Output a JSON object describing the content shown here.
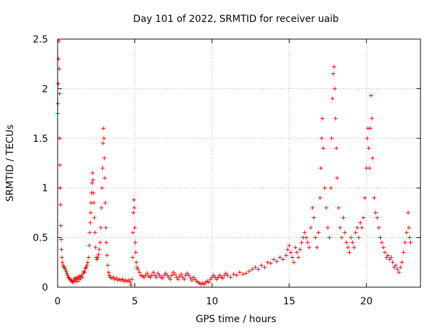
{
  "chart_data": {
    "type": "scatter",
    "title": "Day 101 of 2022, SRMTID for receiver uaib",
    "xlabel": "GPS time / hours",
    "ylabel": "SRMTID / TECUs",
    "xlim": [
      0,
      23.5
    ],
    "ylim": [
      0,
      2.5
    ],
    "xticks": [
      0,
      5,
      10,
      15,
      20
    ],
    "yticks": [
      0,
      0.5,
      1,
      1.5,
      2,
      2.5
    ],
    "xtick_labels": [
      "0",
      "5",
      "10",
      "15",
      "20"
    ],
    "ytick_labels": [
      "0",
      "0.5",
      "1",
      "1.5",
      "2",
      "2.5"
    ],
    "grid": true,
    "marker": "+",
    "color": "#ff0000",
    "series": [
      {
        "name": "SRMTID",
        "points": [
          [
            0.0,
            1.75
          ],
          [
            0.02,
            1.85
          ],
          [
            0.04,
            2.05
          ],
          [
            0.06,
            2.3
          ],
          [
            0.08,
            2.48
          ],
          [
            0.1,
            2.2
          ],
          [
            0.12,
            1.95
          ],
          [
            0.13,
            1.5
          ],
          [
            0.15,
            1.23
          ],
          [
            0.17,
            1.0
          ],
          [
            0.19,
            0.83
          ],
          [
            0.21,
            0.62
          ],
          [
            0.23,
            0.48
          ],
          [
            0.25,
            0.38
          ],
          [
            0.28,
            0.3
          ],
          [
            0.31,
            0.25
          ],
          [
            0.35,
            0.22
          ],
          [
            0.4,
            0.2
          ],
          [
            0.45,
            0.2
          ],
          [
            0.5,
            0.18
          ],
          [
            0.55,
            0.16
          ],
          [
            0.6,
            0.14
          ],
          [
            0.65,
            0.12
          ],
          [
            0.7,
            0.1
          ],
          [
            0.75,
            0.09
          ],
          [
            0.8,
            0.08
          ],
          [
            0.85,
            0.07
          ],
          [
            0.9,
            0.06
          ],
          [
            0.95,
            0.06
          ],
          [
            1.0,
            0.05
          ],
          [
            1.05,
            0.07
          ],
          [
            1.1,
            0.09
          ],
          [
            1.15,
            0.06
          ],
          [
            1.2,
            0.08
          ],
          [
            1.25,
            0.1
          ],
          [
            1.3,
            0.06
          ],
          [
            1.35,
            0.09
          ],
          [
            1.4,
            0.11
          ],
          [
            1.45,
            0.08
          ],
          [
            1.5,
            0.1
          ],
          [
            1.55,
            0.12
          ],
          [
            1.6,
            0.1
          ],
          [
            1.65,
            0.14
          ],
          [
            1.7,
            0.16
          ],
          [
            1.75,
            0.15
          ],
          [
            1.8,
            0.19
          ],
          [
            1.85,
            0.2
          ],
          [
            1.9,
            0.22
          ],
          [
            1.95,
            0.25
          ],
          [
            2.0,
            0.3
          ],
          [
            2.05,
            0.42
          ],
          [
            2.08,
            0.55
          ],
          [
            2.11,
            0.65
          ],
          [
            2.14,
            0.75
          ],
          [
            2.17,
            0.85
          ],
          [
            2.2,
            0.95
          ],
          [
            2.23,
            1.05
          ],
          [
            2.26,
            1.15
          ],
          [
            2.29,
            1.08
          ],
          [
            2.32,
            0.95
          ],
          [
            2.35,
            0.85
          ],
          [
            2.38,
            0.7
          ],
          [
            2.42,
            0.55
          ],
          [
            2.46,
            0.4
          ],
          [
            2.5,
            0.3
          ],
          [
            2.55,
            0.28
          ],
          [
            2.6,
            0.3
          ],
          [
            2.65,
            0.33
          ],
          [
            2.7,
            0.38
          ],
          [
            2.75,
            0.45
          ],
          [
            2.8,
            0.6
          ],
          [
            2.84,
            0.8
          ],
          [
            2.88,
            1.0
          ],
          [
            2.91,
            1.2
          ],
          [
            2.94,
            1.45
          ],
          [
            2.97,
            1.6
          ],
          [
            3.0,
            1.5
          ],
          [
            3.03,
            1.3
          ],
          [
            3.06,
            1.1
          ],
          [
            3.09,
            0.85
          ],
          [
            3.12,
            0.6
          ],
          [
            3.15,
            0.45
          ],
          [
            3.2,
            0.32
          ],
          [
            3.25,
            0.22
          ],
          [
            3.3,
            0.15
          ],
          [
            3.35,
            0.12
          ],
          [
            3.4,
            0.1
          ],
          [
            3.5,
            0.09
          ],
          [
            3.6,
            0.1
          ],
          [
            3.7,
            0.08
          ],
          [
            3.8,
            0.09
          ],
          [
            3.9,
            0.07
          ],
          [
            4.0,
            0.08
          ],
          [
            4.1,
            0.07
          ],
          [
            4.2,
            0.08
          ],
          [
            4.3,
            0.06
          ],
          [
            4.4,
            0.07
          ],
          [
            4.5,
            0.06
          ],
          [
            4.6,
            0.07
          ],
          [
            4.7,
            0.05
          ],
          [
            4.75,
            0.02
          ],
          [
            4.8,
            0.08
          ],
          [
            4.85,
            0.3
          ],
          [
            4.88,
            0.55
          ],
          [
            4.91,
            0.75
          ],
          [
            4.94,
            0.88
          ],
          [
            4.97,
            0.8
          ],
          [
            5.0,
            0.6
          ],
          [
            5.03,
            0.45
          ],
          [
            5.06,
            0.35
          ],
          [
            5.1,
            0.25
          ],
          [
            5.15,
            0.2
          ],
          [
            5.2,
            0.18
          ],
          [
            5.3,
            0.15
          ],
          [
            5.4,
            0.12
          ],
          [
            5.5,
            0.11
          ],
          [
            5.6,
            0.1
          ],
          [
            5.7,
            0.12
          ],
          [
            5.8,
            0.14
          ],
          [
            5.9,
            0.11
          ],
          [
            6.0,
            0.1
          ],
          [
            6.1,
            0.12
          ],
          [
            6.2,
            0.15
          ],
          [
            6.3,
            0.12
          ],
          [
            6.4,
            0.1
          ],
          [
            6.5,
            0.14
          ],
          [
            6.6,
            0.12
          ],
          [
            6.7,
            0.1
          ],
          [
            6.8,
            0.09
          ],
          [
            6.9,
            0.12
          ],
          [
            7.0,
            0.14
          ],
          [
            7.1,
            0.12
          ],
          [
            7.2,
            0.1
          ],
          [
            7.3,
            0.08
          ],
          [
            7.4,
            0.12
          ],
          [
            7.5,
            0.15
          ],
          [
            7.6,
            0.13
          ],
          [
            7.7,
            0.1
          ],
          [
            7.8,
            0.08
          ],
          [
            7.9,
            0.11
          ],
          [
            8.0,
            0.13
          ],
          [
            8.1,
            0.1
          ],
          [
            8.2,
            0.08
          ],
          [
            8.3,
            0.12
          ],
          [
            8.4,
            0.14
          ],
          [
            8.5,
            0.12
          ],
          [
            8.6,
            0.09
          ],
          [
            8.7,
            0.07
          ],
          [
            8.8,
            0.1
          ],
          [
            8.9,
            0.08
          ],
          [
            9.0,
            0.06
          ],
          [
            9.1,
            0.05
          ],
          [
            9.2,
            0.04
          ],
          [
            9.3,
            0.03
          ],
          [
            9.4,
            0.04
          ],
          [
            9.5,
            0.03
          ],
          [
            9.6,
            0.05
          ],
          [
            9.7,
            0.06
          ],
          [
            9.8,
            0.05
          ],
          [
            9.9,
            0.08
          ],
          [
            10.0,
            0.1
          ],
          [
            10.1,
            0.12
          ],
          [
            10.2,
            0.1
          ],
          [
            10.3,
            0.08
          ],
          [
            10.4,
            0.1
          ],
          [
            10.5,
            0.12
          ],
          [
            10.6,
            0.1
          ],
          [
            10.7,
            0.09
          ],
          [
            10.8,
            0.12
          ],
          [
            10.9,
            0.14
          ],
          [
            11.0,
            0.12
          ],
          [
            11.2,
            0.1
          ],
          [
            11.4,
            0.13
          ],
          [
            11.6,
            0.12
          ],
          [
            11.8,
            0.15
          ],
          [
            12.0,
            0.13
          ],
          [
            12.2,
            0.14
          ],
          [
            12.4,
            0.16
          ],
          [
            12.6,
            0.18
          ],
          [
            12.8,
            0.2
          ],
          [
            13.0,
            0.18
          ],
          [
            13.2,
            0.22
          ],
          [
            13.4,
            0.2
          ],
          [
            13.6,
            0.25
          ],
          [
            13.8,
            0.24
          ],
          [
            14.0,
            0.28
          ],
          [
            14.2,
            0.26
          ],
          [
            14.4,
            0.3
          ],
          [
            14.6,
            0.28
          ],
          [
            14.8,
            0.32
          ],
          [
            14.9,
            0.38
          ],
          [
            15.0,
            0.42
          ],
          [
            15.1,
            0.35
          ],
          [
            15.2,
            0.3
          ],
          [
            15.3,
            0.25
          ],
          [
            15.4,
            0.4
          ],
          [
            15.5,
            0.35
          ],
          [
            15.6,
            0.3
          ],
          [
            15.7,
            0.38
          ],
          [
            15.8,
            0.45
          ],
          [
            15.9,
            0.5
          ],
          [
            16.0,
            0.55
          ],
          [
            16.1,
            0.5
          ],
          [
            16.2,
            0.45
          ],
          [
            16.3,
            0.4
          ],
          [
            16.4,
            0.6
          ],
          [
            16.5,
            0.8
          ],
          [
            16.6,
            0.7
          ],
          [
            16.7,
            0.5
          ],
          [
            16.8,
            0.4
          ],
          [
            16.9,
            0.55
          ],
          [
            17.0,
            0.9
          ],
          [
            17.05,
            1.2
          ],
          [
            17.1,
            1.5
          ],
          [
            17.15,
            1.7
          ],
          [
            17.2,
            1.4
          ],
          [
            17.3,
            1.0
          ],
          [
            17.4,
            0.8
          ],
          [
            17.5,
            0.6
          ],
          [
            17.6,
            0.5
          ],
          [
            17.7,
            1.0
          ],
          [
            17.75,
            1.5
          ],
          [
            17.8,
            1.9
          ],
          [
            17.85,
            2.15
          ],
          [
            17.9,
            2.22
          ],
          [
            17.95,
            2.0
          ],
          [
            18.0,
            1.7
          ],
          [
            18.05,
            1.4
          ],
          [
            18.1,
            1.1
          ],
          [
            18.2,
            0.8
          ],
          [
            18.3,
            0.6
          ],
          [
            18.4,
            0.5
          ],
          [
            18.5,
            0.7
          ],
          [
            18.6,
            0.55
          ],
          [
            18.7,
            0.45
          ],
          [
            18.8,
            0.4
          ],
          [
            18.9,
            0.35
          ],
          [
            19.0,
            0.5
          ],
          [
            19.1,
            0.45
          ],
          [
            19.2,
            0.4
          ],
          [
            19.3,
            0.55
          ],
          [
            19.4,
            0.6
          ],
          [
            19.5,
            0.5
          ],
          [
            19.6,
            0.65
          ],
          [
            19.7,
            0.6
          ],
          [
            19.8,
            0.7
          ],
          [
            19.9,
            0.9
          ],
          [
            20.0,
            1.2
          ],
          [
            20.05,
            1.5
          ],
          [
            20.1,
            1.6
          ],
          [
            20.15,
            1.4
          ],
          [
            20.2,
            1.2
          ],
          [
            20.25,
            1.6
          ],
          [
            20.3,
            1.93
          ],
          [
            20.35,
            1.7
          ],
          [
            20.4,
            1.3
          ],
          [
            20.5,
            0.9
          ],
          [
            20.6,
            0.75
          ],
          [
            20.7,
            0.7
          ],
          [
            20.8,
            0.6
          ],
          [
            20.9,
            0.5
          ],
          [
            21.0,
            0.45
          ],
          [
            21.1,
            0.4
          ],
          [
            21.2,
            0.35
          ],
          [
            21.3,
            0.3
          ],
          [
            21.4,
            0.32
          ],
          [
            21.5,
            0.28
          ],
          [
            21.6,
            0.3
          ],
          [
            21.7,
            0.25
          ],
          [
            21.8,
            0.2
          ],
          [
            21.9,
            0.22
          ],
          [
            22.0,
            0.18
          ],
          [
            22.1,
            0.15
          ],
          [
            22.2,
            0.2
          ],
          [
            22.3,
            0.25
          ],
          [
            22.4,
            0.35
          ],
          [
            22.5,
            0.45
          ],
          [
            22.6,
            0.55
          ],
          [
            22.7,
            0.75
          ],
          [
            22.75,
            0.6
          ],
          [
            22.8,
            0.5
          ],
          [
            22.85,
            0.45
          ]
        ]
      }
    ]
  }
}
